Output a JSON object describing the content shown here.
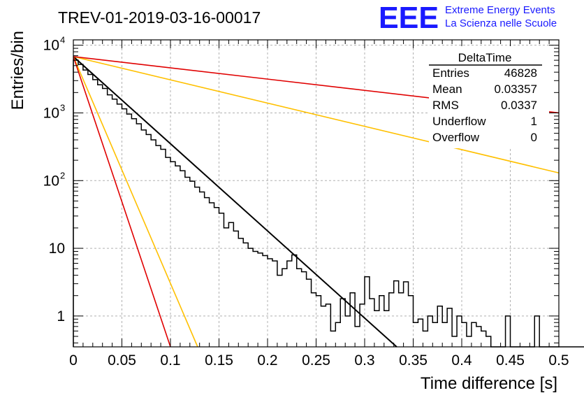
{
  "title": "TREV-01-2019-03-16-00017",
  "logo": {
    "mark": "EEE",
    "line1": "Extreme Energy Events",
    "line2": "La Scienza nelle Scuole",
    "color": "#1a1aff"
  },
  "stats": {
    "header": "DeltaTime",
    "rows": [
      {
        "label": "Entries",
        "value": "46828"
      },
      {
        "label": "Mean",
        "value": "0.03357"
      },
      {
        "label": "RMS",
        "value": "0.0337"
      },
      {
        "label": "Underflow",
        "value": "1"
      },
      {
        "label": "Overflow",
        "value": "0"
      }
    ]
  },
  "chart_data": {
    "type": "line",
    "xlabel": "Time difference [s]",
    "ylabel": "Entries/bin",
    "xlim": [
      0,
      0.5
    ],
    "ylim": [
      0.35,
      12000
    ],
    "ylog": true,
    "grid": true,
    "x_ticks": [
      "0",
      "0.05",
      "0.1",
      "0.15",
      "0.2",
      "0.25",
      "0.3",
      "0.35",
      "0.4",
      "0.45",
      "0.5"
    ],
    "y_ticks": [
      {
        "value": 1,
        "label": "1"
      },
      {
        "value": 10,
        "label": "10"
      },
      {
        "value": 100,
        "label": "10",
        "sup": "2"
      },
      {
        "value": 1000,
        "label": "10",
        "sup": "3"
      },
      {
        "value": 10000,
        "label": "10",
        "sup": "4"
      }
    ],
    "histogram": {
      "bin_width": 0.005,
      "color": "#000000",
      "counts": [
        6000,
        5200,
        4300,
        3700,
        3100,
        2600,
        2300,
        1850,
        1600,
        1350,
        1150,
        960,
        820,
        690,
        560,
        480,
        400,
        330,
        290,
        220,
        190,
        165,
        140,
        112,
        98,
        80,
        68,
        56,
        47,
        40,
        33,
        20,
        24,
        18,
        14,
        12,
        10,
        9,
        8.5,
        7.8,
        7,
        6.5,
        4,
        5,
        6.5,
        8,
        5,
        4.5,
        3.5,
        2.2,
        2,
        1.4,
        1.5,
        0.6,
        0.8,
        1.8,
        1,
        2.2,
        0.7,
        1.5,
        3.8,
        1.8,
        1.2,
        2,
        1.2,
        2.2,
        3.3,
        2.2,
        3.2,
        2,
        0.8,
        0.9,
        0.6,
        1,
        0.8,
        1.4,
        0.8,
        1.3,
        0.5,
        1,
        0.8,
        0.5,
        0.8,
        0.7,
        0.6,
        0.5,
        0,
        0,
        0,
        1,
        0,
        0,
        0,
        0,
        0,
        1,
        0,
        0,
        0,
        0,
        0,
        0,
        0,
        0,
        0,
        0,
        0,
        0,
        0,
        0,
        0,
        0,
        0,
        0,
        0,
        0,
        0,
        0,
        0,
        0,
        0,
        0,
        0,
        0,
        0
      ]
    },
    "curves": [
      {
        "color": "#000000",
        "width": 2,
        "x0": 0.0,
        "y0": 6800,
        "x1": 0.333,
        "y1": 0.35
      },
      {
        "color": "#ffc000",
        "width": 1.6,
        "x0": 0.0,
        "y0": 6800,
        "x1": 0.5,
        "y1": 130
      },
      {
        "color": "#e00000",
        "width": 1.6,
        "x0": 0.0,
        "y0": 6800,
        "x1": 0.5,
        "y1": 1000
      },
      {
        "color": "#ffc000",
        "width": 1.6,
        "x0": 0.0,
        "y0": 6800,
        "x1": 0.128,
        "y1": 0.35
      },
      {
        "color": "#e00000",
        "width": 1.6,
        "x0": 0.0,
        "y0": 6800,
        "x1": 0.1,
        "y1": 0.35
      }
    ]
  }
}
